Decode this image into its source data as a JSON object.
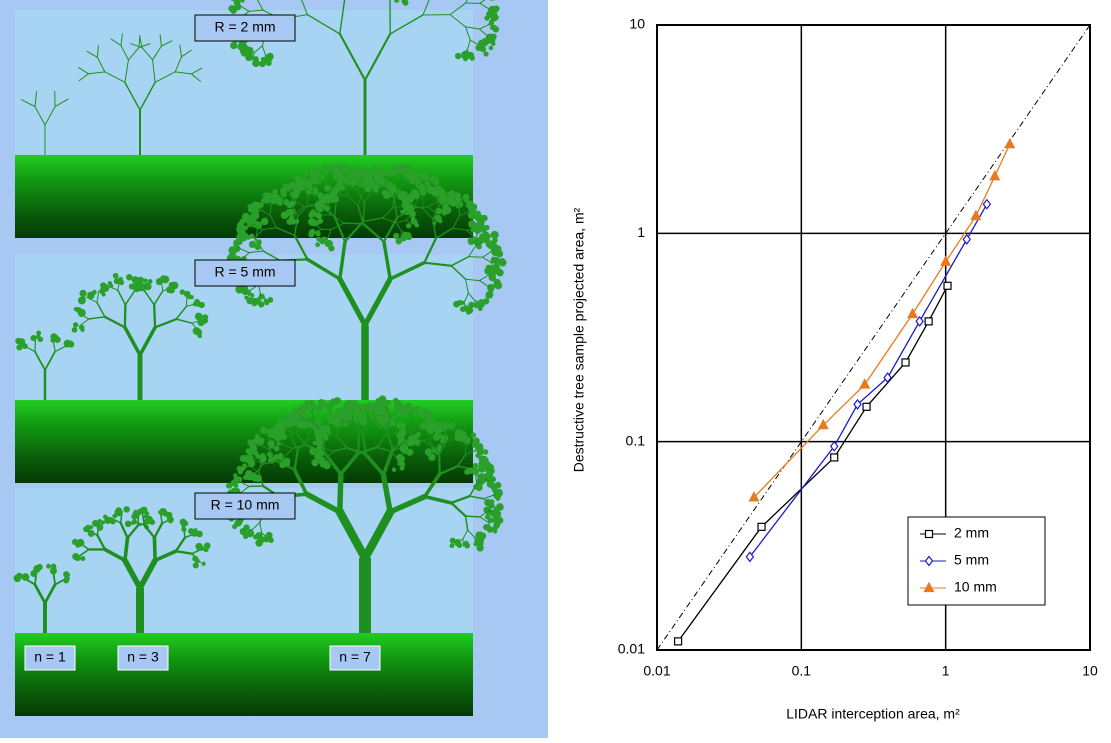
{
  "scenes": [
    {
      "label": "R = 2 mm"
    },
    {
      "label": "R = 5 mm"
    },
    {
      "label": "R = 10 mm",
      "tree_labels": [
        "n = 1",
        "n = 3",
        "n = 7"
      ]
    }
  ],
  "chart_data": {
    "type": "line",
    "xlabel": "LIDAR interception area, m²",
    "ylabel": "Destructive tree sample projected area, m²",
    "xscale": "log",
    "yscale": "log",
    "xlim": [
      0.01,
      10
    ],
    "ylim": [
      0.01,
      10
    ],
    "xticks": [
      0.01,
      0.1,
      1,
      10
    ],
    "yticks": [
      0.01,
      0.1,
      1,
      10
    ],
    "grid": true,
    "legend": "lower right",
    "identity_line": true,
    "series": [
      {
        "name": "2 mm",
        "color": "#000000",
        "marker": "square",
        "x": [
          0.014,
          0.053,
          0.169,
          0.283,
          0.527,
          0.762,
          1.03
        ],
        "values": [
          0.011,
          0.039,
          0.084,
          0.147,
          0.24,
          0.378,
          0.56
        ]
      },
      {
        "name": "5 mm",
        "color": "#1a1acc",
        "marker": "diamond",
        "x": [
          0.044,
          0.169,
          0.245,
          0.396,
          0.66,
          1.4,
          1.93
        ],
        "values": [
          0.028,
          0.095,
          0.151,
          0.203,
          0.378,
          0.935,
          1.38
        ]
      },
      {
        "name": "10 mm",
        "color": "#e87a1e",
        "marker": "triangle",
        "x": [
          0.047,
          0.142,
          0.275,
          0.59,
          1.0,
          1.62,
          2.19,
          2.78
        ],
        "values": [
          0.054,
          0.12,
          0.188,
          0.41,
          0.73,
          1.21,
          1.88,
          2.68
        ]
      }
    ]
  }
}
